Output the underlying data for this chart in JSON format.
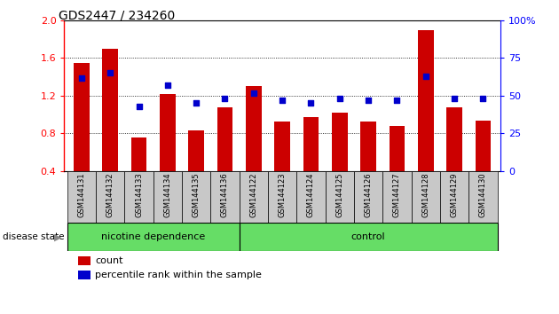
{
  "title": "GDS2447 / 234260",
  "samples": [
    "GSM144131",
    "GSM144132",
    "GSM144133",
    "GSM144134",
    "GSM144135",
    "GSM144136",
    "GSM144122",
    "GSM144123",
    "GSM144124",
    "GSM144125",
    "GSM144126",
    "GSM144127",
    "GSM144128",
    "GSM144129",
    "GSM144130"
  ],
  "counts": [
    1.55,
    1.7,
    0.76,
    1.22,
    0.83,
    1.08,
    1.3,
    0.93,
    0.97,
    1.02,
    0.93,
    0.88,
    1.9,
    1.08,
    0.94
  ],
  "percentile_ranks": [
    62,
    65,
    43,
    57,
    45,
    48,
    52,
    47,
    45,
    48,
    47,
    47,
    63,
    48,
    48
  ],
  "ylim_left": [
    0.4,
    2.0
  ],
  "ylim_right": [
    0,
    100
  ],
  "yticks_left": [
    0.4,
    0.8,
    1.2,
    1.6,
    2.0
  ],
  "yticks_right": [
    0,
    25,
    50,
    75,
    100
  ],
  "ytick_labels_right": [
    "0",
    "25",
    "50",
    "75",
    "100%"
  ],
  "bar_color": "#cc0000",
  "dot_color": "#0000cc",
  "group1_label": "nicotine dependence",
  "group2_label": "control",
  "group1_count": 6,
  "group2_count": 9,
  "group_label_prefix": "disease state",
  "legend_count_label": "count",
  "legend_percentile_label": "percentile rank within the sample",
  "label_area_color": "#c8c8c8",
  "group_bg": "#66dd66"
}
